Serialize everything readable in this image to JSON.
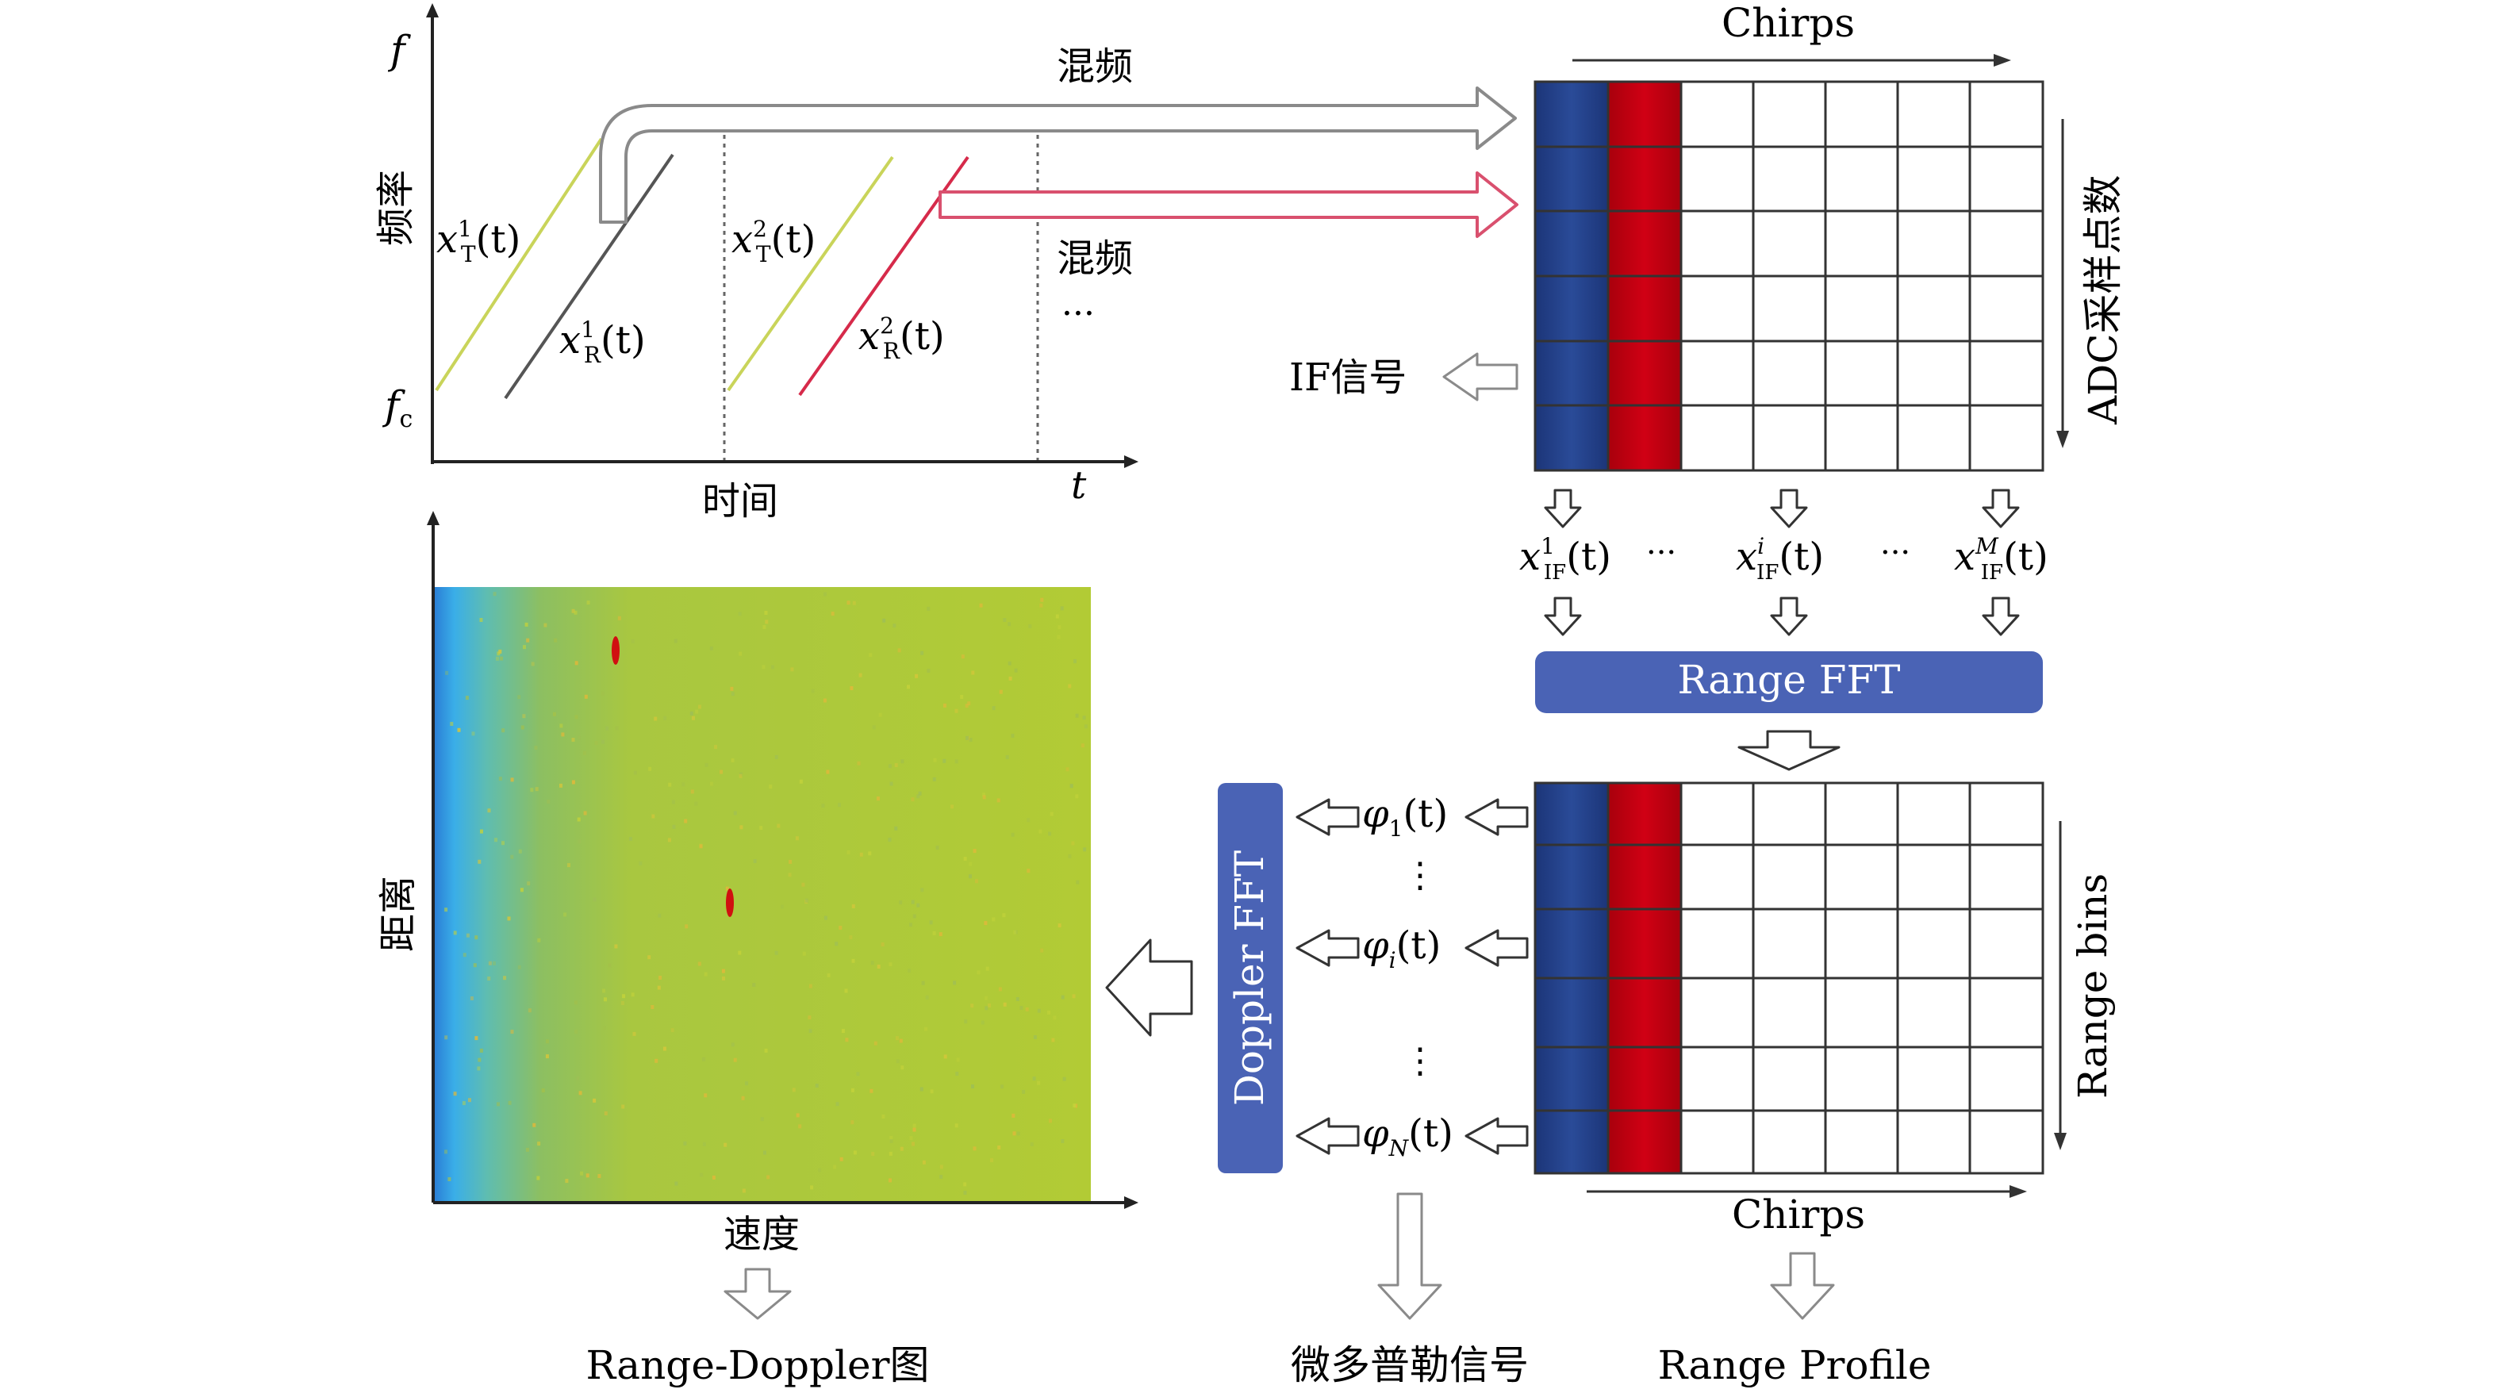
{
  "chirp_plot": {
    "y_axis_symbol": "f",
    "y_axis_label": "频率",
    "y_axis_tick": "f",
    "y_axis_tick_sub": "c",
    "x_axis_label": "时间",
    "x_axis_symbol": "t",
    "signals": [
      {
        "base": "x",
        "sub": "T",
        "sup": "1",
        "arg": "(t)"
      },
      {
        "base": "x",
        "sub": "R",
        "sup": "1",
        "arg": "(t)"
      },
      {
        "base": "x",
        "sub": "T",
        "sup": "2",
        "arg": "(t)"
      },
      {
        "base": "x",
        "sub": "R",
        "sup": "2",
        "arg": "(t)"
      }
    ],
    "mix_label_1": "混频",
    "mix_label_2": "混频",
    "ellipsis": "···"
  },
  "adc_matrix": {
    "top_label": "Chirps",
    "side_label": "ADC采样点数",
    "if_label": "IF信号",
    "colors": {
      "col1": "#23408a",
      "col2": "#c00010"
    }
  },
  "if_signals": [
    {
      "base": "x",
      "sub": "IF",
      "sup": "1",
      "arg": "(t)"
    },
    {
      "base": "x",
      "sub": "IF",
      "sup": "i",
      "arg": "(t)"
    },
    {
      "base": "x",
      "sub": "IF",
      "sup": "M",
      "arg": "(t)"
    }
  ],
  "if_ellipsis": "···",
  "range_fft": {
    "label": "Range FFT",
    "color": "#4a63b5"
  },
  "range_matrix": {
    "side_label": "Range bins",
    "bottom_label": "Chirps"
  },
  "phi_signals": [
    {
      "base": "φ",
      "sub": "1",
      "arg": "(t)"
    },
    {
      "base": "φ",
      "sub": "i",
      "arg": "(t)"
    },
    {
      "base": "φ",
      "sub": "N",
      "arg": "(t)"
    }
  ],
  "phi_vdots": "⋮",
  "doppler_fft": {
    "label": "Doppler FFT",
    "color": "#4a63b5"
  },
  "rd_plot": {
    "y_axis_label": "距离",
    "x_axis_label": "速度"
  },
  "outputs": {
    "rd_map": "Range-Doppler图",
    "micro_doppler": "微多普勒信号",
    "range_profile": "Range Profile"
  }
}
